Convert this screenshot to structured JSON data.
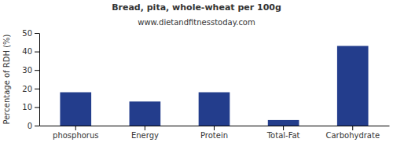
{
  "chart_data": {
    "type": "bar",
    "title": "Bread, pita, whole-wheat per 100g",
    "subtitle": "www.dietandfitnesstoday.com",
    "ylabel": "Percentage of RDH (%)",
    "categories": [
      "phosphorus",
      "Energy",
      "Protein",
      "Total-Fat",
      "Carbohydrate"
    ],
    "values": [
      18,
      13,
      18,
      3,
      43
    ],
    "color": "#233d8c",
    "ylim": [
      0,
      50
    ],
    "yticks": [
      0,
      10,
      20,
      30,
      40,
      50
    ],
    "grid": false
  }
}
